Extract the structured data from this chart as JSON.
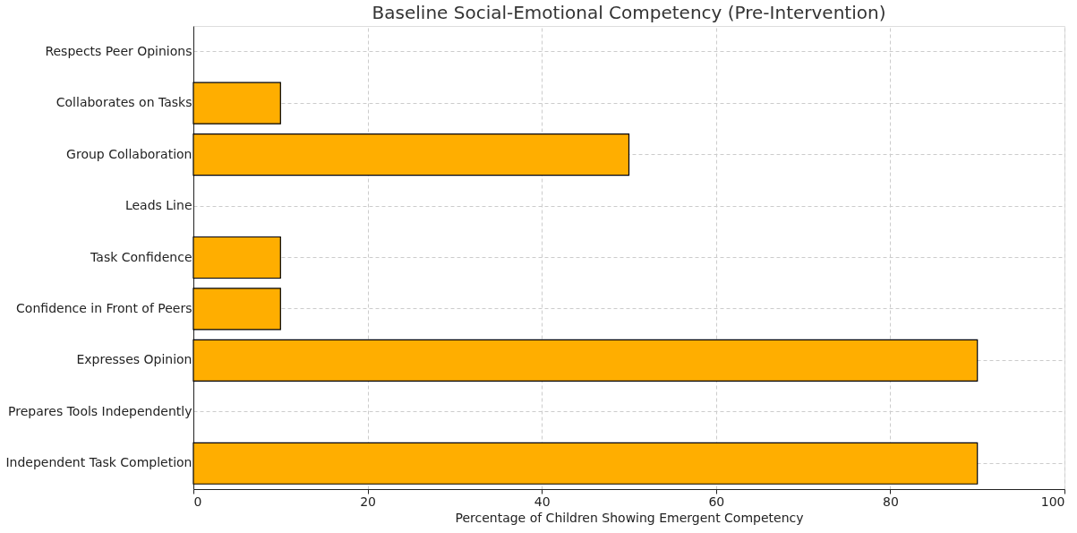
{
  "chart_data": {
    "type": "bar",
    "orientation": "horizontal",
    "title": "Baseline Social-Emotional Competency (Pre-Intervention)",
    "xlabel": "Percentage of Children Showing Emergent Competency",
    "categories": [
      "Respects Peer Opinions",
      "Collaborates on Tasks",
      "Group Collaboration",
      "Leads Line",
      "Task Confidence",
      "Confidence in Front of Peers",
      "Expresses Opinion",
      "Prepares Tools Independently",
      "Independent Task Completion"
    ],
    "values": [
      0,
      10,
      50,
      0,
      10,
      10,
      90,
      0,
      90
    ],
    "color": "#ffae00",
    "xlim": [
      0,
      100
    ],
    "xticks": [
      0,
      20,
      40,
      60,
      80,
      100
    ],
    "grid": true
  }
}
